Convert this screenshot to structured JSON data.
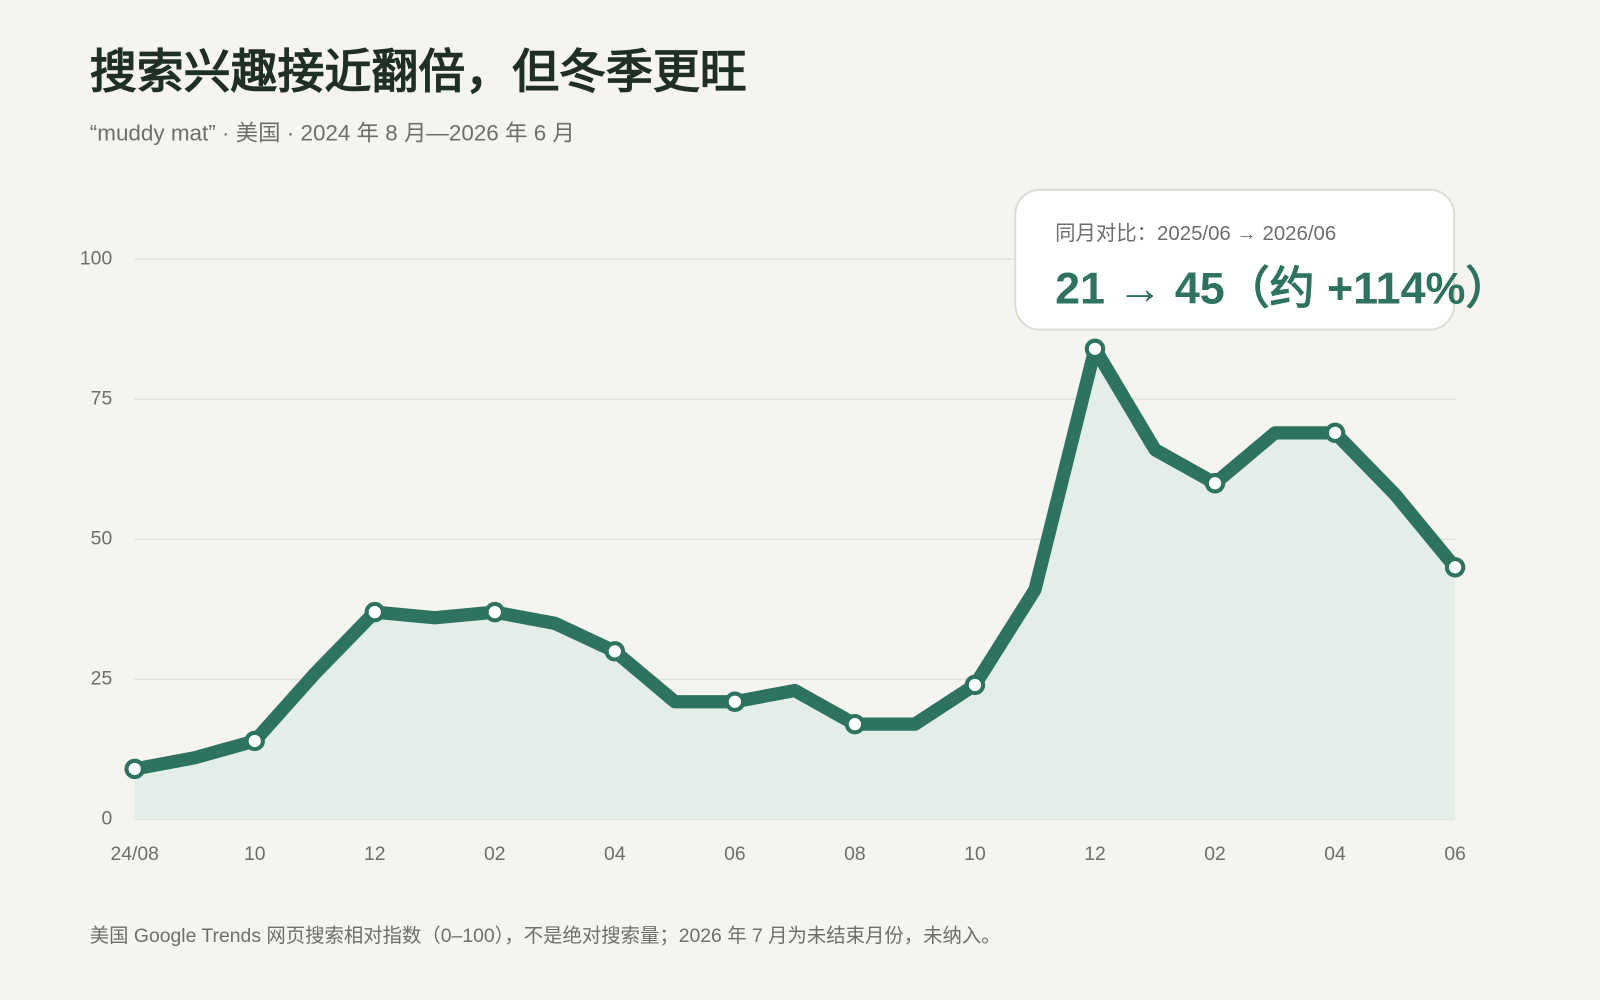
{
  "chart_data": {
    "type": "area",
    "title": "搜索兴趣接近翻倍，但冬季更旺",
    "subtitle": "“muddy mat” · 美国 · 2024 年 8 月—2026 年 6 月",
    "categories": [
      "24/08",
      null,
      "10",
      null,
      "12",
      null,
      "02",
      null,
      "04",
      null,
      "06",
      null,
      "08",
      null,
      "10",
      null,
      "12",
      null,
      "02",
      null,
      "04",
      null,
      "06"
    ],
    "values": [
      9,
      11,
      14,
      26,
      37,
      36,
      37,
      35,
      30,
      21,
      21,
      23,
      17,
      17,
      24,
      41,
      84,
      66,
      60,
      69,
      69,
      58,
      45
    ],
    "color": "#2e7260",
    "fill_color": "#e3eee8",
    "ylim": [
      0,
      100
    ],
    "yticks": [
      0,
      25,
      50,
      75,
      100
    ],
    "grid": true,
    "annotation": {
      "label": "同月对比：2025/06 → 2026/06",
      "text": "21 → 45（约 +114%）"
    },
    "note": "美国 Google Trends 网页搜索相对指数（0–100），不是绝对搜索量；2026 年 7 月为未结束月份，未纳入。"
  }
}
